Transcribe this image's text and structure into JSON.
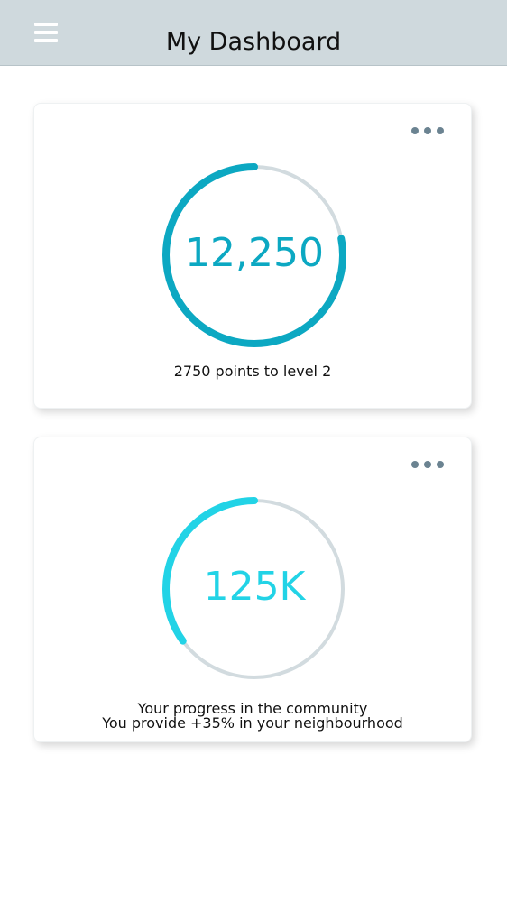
{
  "header": {
    "title": "My Dashboard",
    "menu_icon": "hamburger-menu-icon",
    "background": "#cfd9dd"
  },
  "cards": [
    {
      "value": "12,250",
      "progress": 0.78,
      "color": "#0ca8c2",
      "track_color": "#d2dbdf",
      "caption": "2750 points to level 2",
      "more_icon": "more-dots-icon"
    },
    {
      "value": "125K",
      "progress": 0.35,
      "color": "#22d3e6",
      "track_color": "#d2dbdf",
      "caption_line1": "Your progress in the community",
      "caption_line2": "You provide +35% in your neighbourhood",
      "more_icon": "more-dots-icon"
    }
  ]
}
